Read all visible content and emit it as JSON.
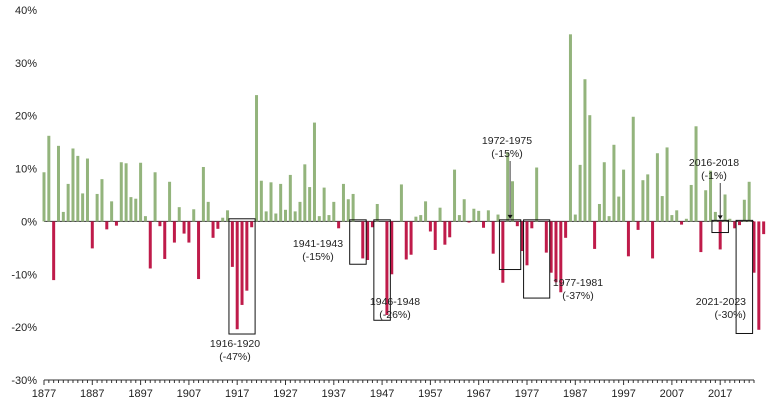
{
  "chart_data": {
    "type": "bar",
    "title": "",
    "xlabel": "",
    "ylabel": "",
    "ylim": [
      -30,
      40
    ],
    "yticks": [
      -30,
      -20,
      -10,
      0,
      10,
      20,
      30,
      40
    ],
    "ytick_labels": [
      "-30%",
      "-20%",
      "-10%",
      "0%",
      "10%",
      "20%",
      "30%",
      "40%"
    ],
    "xticks": [
      1877,
      1887,
      1897,
      1907,
      1917,
      1927,
      1937,
      1947,
      1957,
      1967,
      1977,
      1987,
      1997,
      2007,
      2017
    ],
    "xtick_labels": [
      "1877",
      "1887",
      "1897",
      "1907",
      "1917",
      "1927",
      "1937",
      "1947",
      "1957",
      "1967",
      "1977",
      "1987",
      "1997",
      "2007",
      "2017"
    ],
    "x_range": [
      1877,
      2024
    ],
    "gridlines": false,
    "colors": {
      "positive": "#93b47c",
      "negative": "#bf1b4a"
    },
    "start_year": 1877,
    "values": [
      9.3,
      16.2,
      -11.1,
      14.3,
      1.8,
      7.1,
      13.8,
      12.4,
      5.3,
      11.9,
      -5.1,
      5.2,
      8.0,
      -1.5,
      3.8,
      -0.8,
      11.2,
      11.0,
      4.6,
      4.3,
      11.1,
      1.0,
      -8.9,
      9.3,
      -0.9,
      -7.1,
      7.5,
      -4.0,
      2.7,
      -2.3,
      -4.0,
      2.3,
      -10.9,
      10.3,
      3.7,
      -3.1,
      -1.4,
      0.7,
      2.1,
      -8.6,
      -20.4,
      -15.8,
      -13.1,
      -1.1,
      23.9,
      7.7,
      1.9,
      7.4,
      1.5,
      7.1,
      2.2,
      8.8,
      1.9,
      3.7,
      10.8,
      6.5,
      18.7,
      1.0,
      6.4,
      1.2,
      3.7,
      -1.3,
      7.1,
      4.2,
      5.2,
      0.0,
      -7.0,
      -7.3,
      -1.1,
      3.3,
      0.0,
      -17.7,
      -10.0,
      0.0,
      7.0,
      -7.2,
      -6.3,
      0.9,
      1.2,
      3.8,
      -1.9,
      -5.4,
      2.6,
      -4.4,
      -3.0,
      9.8,
      1.2,
      4.2,
      -0.2,
      2.4,
      2.0,
      -1.2,
      2.1,
      -6.1,
      1.3,
      -11.6,
      13.1,
      7.6,
      -0.9,
      -5.6,
      -8.3,
      -1.3,
      10.2,
      0.0,
      -5.9,
      -9.7,
      -11.5,
      -13.4,
      -3.1,
      35.4,
      1.3,
      10.7,
      26.9,
      20.1,
      -5.2,
      3.3,
      11.2,
      1.0,
      14.5,
      4.7,
      9.8,
      -6.6,
      19.8,
      -1.6,
      7.8,
      8.9,
      -7.0,
      12.9,
      4.8,
      14.0,
      1.2,
      2.1,
      -0.6,
      0.5,
      6.9,
      18.0,
      -5.8,
      5.9,
      9.6,
      1.8,
      -5.3,
      5.1,
      0.5,
      -1.3,
      -0.7,
      4.1,
      7.5,
      -9.7,
      -20.5,
      -2.4
    ],
    "annotations": [
      {
        "line1": "1916-1920",
        "line2": "(-47%)",
        "box": [
          1916,
          1920
        ]
      },
      {
        "line1": "1941-1943",
        "line2": "(-15%)",
        "box": [
          1941,
          1943
        ]
      },
      {
        "line1": "1946-1948",
        "line2": "(-26%)",
        "box": [
          1946,
          1948
        ]
      },
      {
        "line1": "1972-1975",
        "line2": "(-15%)",
        "box": [
          1972,
          1975
        ]
      },
      {
        "line1": "1977-1981",
        "line2": "(-37%)",
        "box": [
          1977,
          1981
        ]
      },
      {
        "line1": "2016-2018",
        "line2": "(-1%)",
        "box": [
          2016,
          2018
        ]
      },
      {
        "line1": "2021-2023",
        "line2": "(-30%)",
        "box": [
          2021,
          2023
        ]
      }
    ]
  }
}
